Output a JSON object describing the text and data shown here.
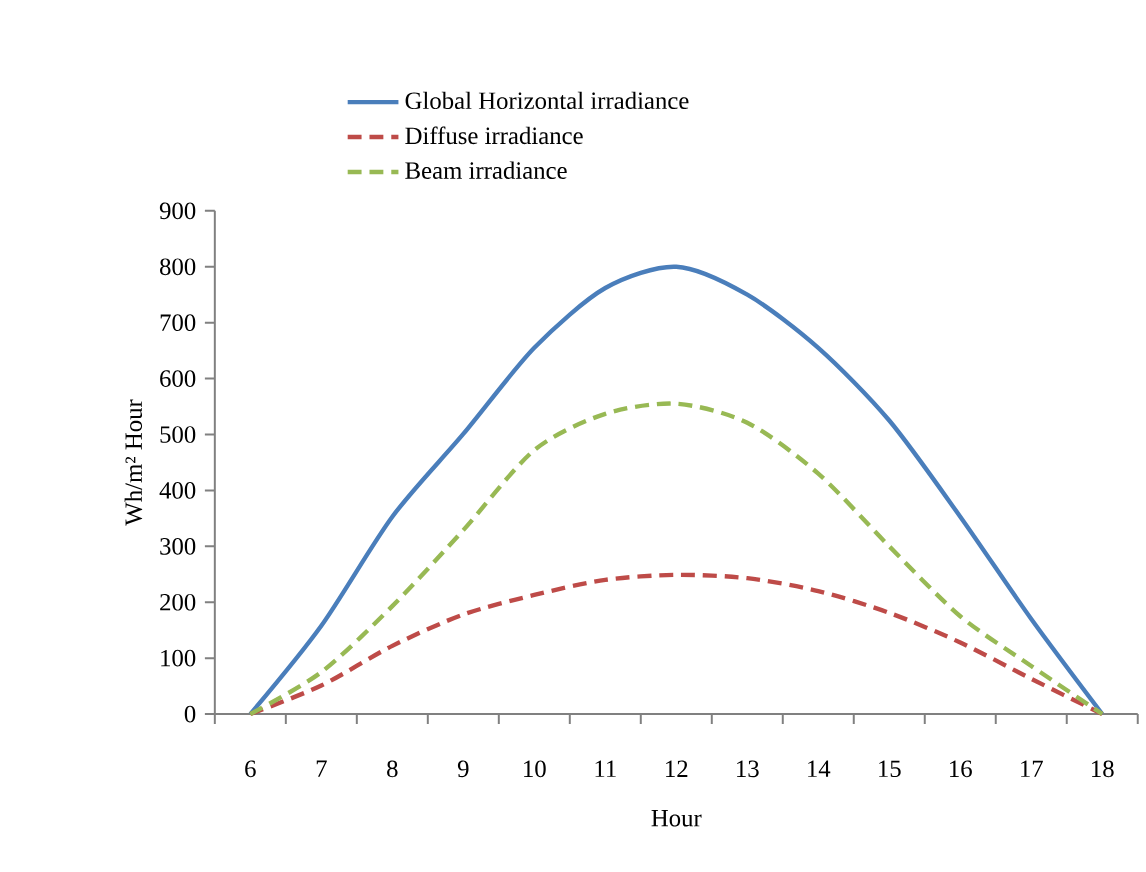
{
  "chart_data": {
    "type": "line",
    "xlabel": "Hour",
    "ylabel": "Wh/m² Hour",
    "categories": [
      "6",
      "7",
      "8",
      "9",
      "10",
      "11",
      "12",
      "13",
      "14",
      "15",
      "16",
      "17",
      "18"
    ],
    "series": [
      {
        "name": "Global Horizontal irradiance",
        "color": "#4a7ebb",
        "line_style": "solid",
        "values": [
          0,
          158,
          353,
          501,
          655,
          762,
          800,
          750,
          655,
          525,
          353,
          170,
          0
        ]
      },
      {
        "name": "Diffuse irradiance",
        "color": "#be4b48",
        "line_style": "dashed",
        "values": [
          0,
          51,
          122,
          178,
          213,
          240,
          249,
          243,
          220,
          181,
          128,
          63,
          0
        ]
      },
      {
        "name": "Beam irradiance",
        "color": "#98b954",
        "line_style": "dashed",
        "values": [
          0,
          75,
          193,
          329,
          472,
          537,
          555,
          521,
          430,
          300,
          175,
          86,
          0
        ]
      }
    ],
    "ylim": [
      0,
      900
    ],
    "yticks": [
      0,
      100,
      200,
      300,
      400,
      500,
      600,
      700,
      800,
      900
    ],
    "legend": "top",
    "marker": "none"
  }
}
